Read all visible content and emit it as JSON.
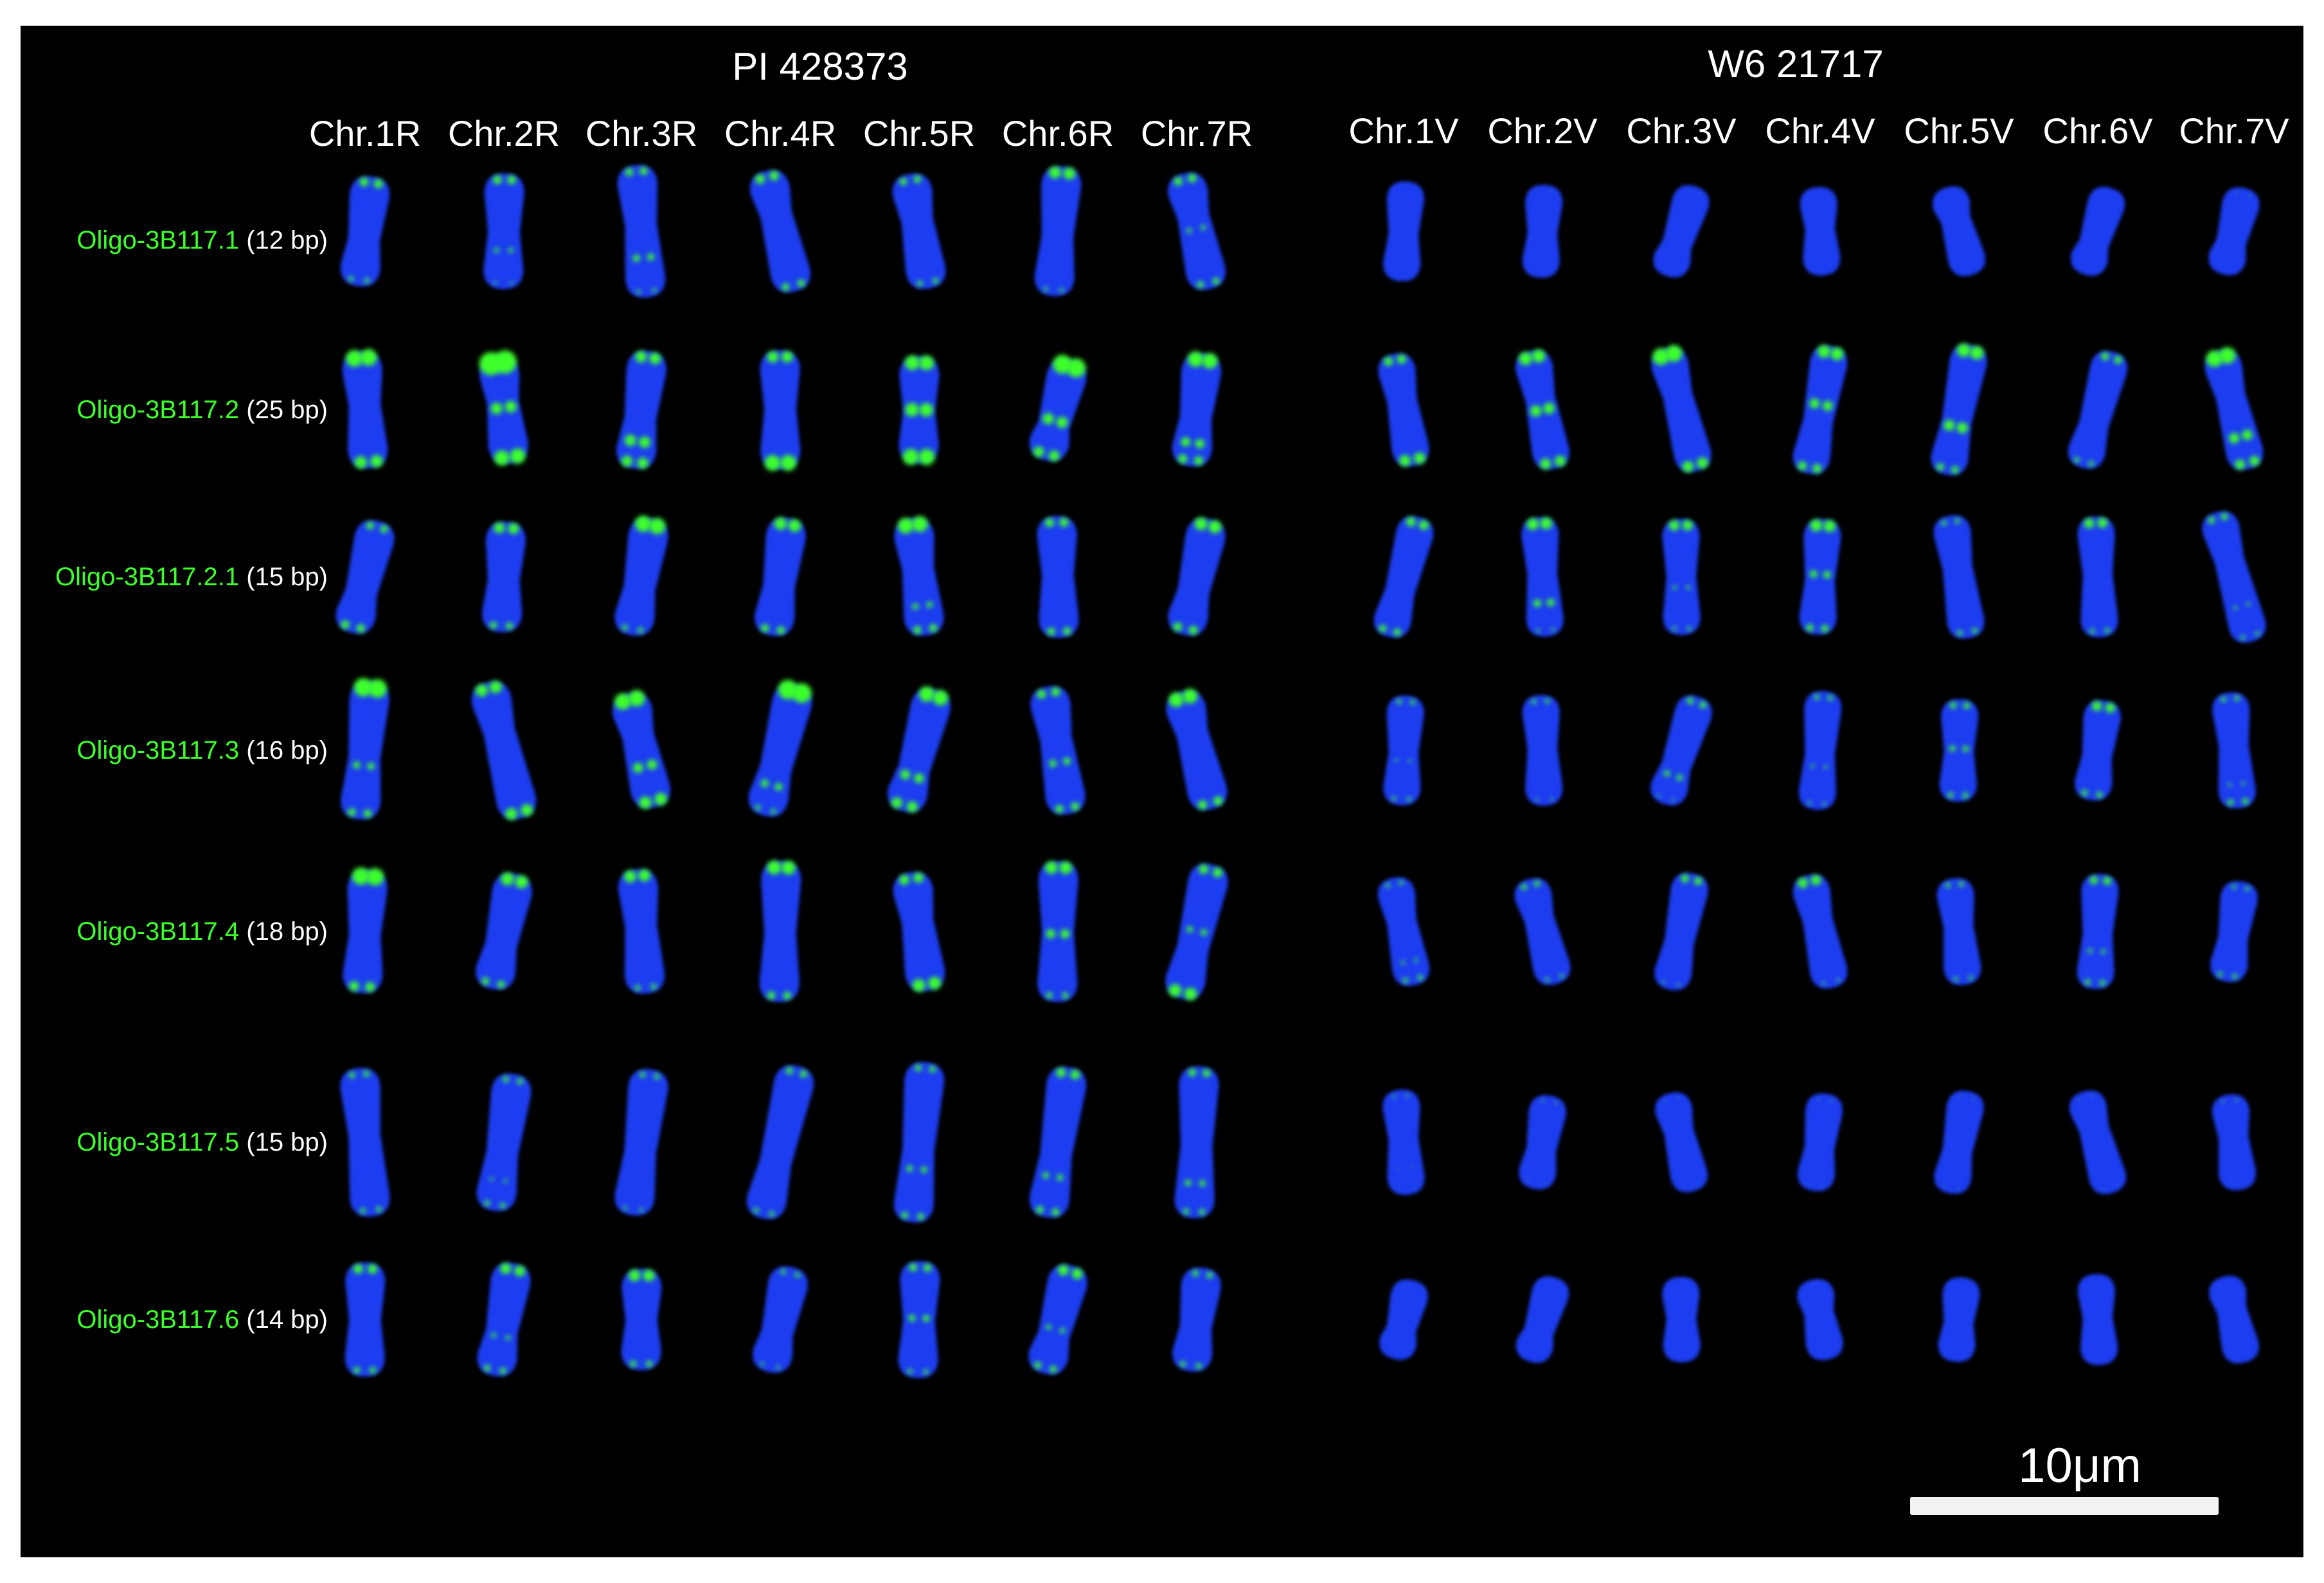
{
  "groups": [
    {
      "title": "PI 428373",
      "columns": [
        "Chr.1R",
        "Chr.2R",
        "Chr.3R",
        "Chr.4R",
        "Chr.5R",
        "Chr.6R",
        "Chr.7R"
      ]
    },
    {
      "title": "W6 21717",
      "columns": [
        "Chr.1V",
        "Chr.2V",
        "Chr.3V",
        "Chr.4V",
        "Chr.5V",
        "Chr.6V",
        "Chr.7V"
      ]
    }
  ],
  "rows": [
    {
      "probe": "Oligo-3B117.1",
      "length": "(12 bp)"
    },
    {
      "probe": "Oligo-3B117.2",
      "length": "(25 bp)"
    },
    {
      "probe": "Oligo-3B117.2.1",
      "length": "(15 bp)"
    },
    {
      "probe": "Oligo-3B117.3",
      "length": "(16 bp)"
    },
    {
      "probe": "Oligo-3B117.4",
      "length": "(18 bp)"
    },
    {
      "probe": "Oligo-3B117.5",
      "length": "(15 bp)"
    },
    {
      "probe": "Oligo-3B117.6",
      "length": "(14 bp)"
    }
  ],
  "scale_bar": {
    "label": "10μm"
  },
  "colors": {
    "background": "#000000",
    "chromosome": "#1e3cf0",
    "signal": "#3cff2a",
    "text": "#ffffff",
    "probe_text": "#3cff2a"
  }
}
